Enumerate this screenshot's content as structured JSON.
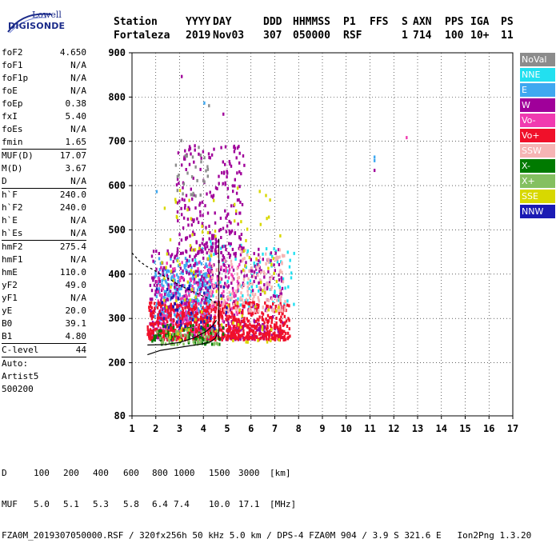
{
  "logo": {
    "line1": "Lowell",
    "line2": "DIGISONDE"
  },
  "header": {
    "row1": [
      "Station",
      "YYYY",
      "DAY",
      "DDD",
      "HHMMSS",
      "P1",
      "FFS",
      "S",
      "AXN",
      "PPS",
      "IGA",
      "PS"
    ],
    "row2": [
      "Fortaleza",
      "2019",
      "Nov03",
      "307",
      "050000",
      "RSF",
      "",
      "1",
      "714",
      "100",
      "10+",
      "11"
    ]
  },
  "params": {
    "group1": [
      [
        "foF2",
        "4.650"
      ],
      [
        "foF1",
        "N/A"
      ],
      [
        "foF1p",
        "N/A"
      ],
      [
        "foE",
        "N/A"
      ],
      [
        "foEp",
        "0.38"
      ],
      [
        "fxI",
        "5.40"
      ],
      [
        "foEs",
        "N/A"
      ],
      [
        "fmin",
        "1.65"
      ]
    ],
    "group2": [
      [
        "MUF(D)",
        "17.07"
      ],
      [
        "M(D)",
        "3.67"
      ],
      [
        "D",
        "N/A"
      ]
    ],
    "group3": [
      [
        "h`F",
        "240.0"
      ],
      [
        "h`F2",
        "240.0"
      ],
      [
        "h`E",
        "N/A"
      ],
      [
        "h`Es",
        "N/A"
      ]
    ],
    "group4": [
      [
        "hmF2",
        "275.4"
      ],
      [
        "hmF1",
        "N/A"
      ],
      [
        "hmE",
        "110.0"
      ],
      [
        "yF2",
        "49.0"
      ],
      [
        "yF1",
        "N/A"
      ],
      [
        "yE",
        "20.0"
      ],
      [
        "B0",
        "39.1"
      ],
      [
        "B1",
        "4.80"
      ]
    ],
    "group5": [
      [
        "C-level",
        "44"
      ]
    ],
    "group6": [
      "Auto:",
      "Artist5",
      "500200"
    ]
  },
  "legend": [
    {
      "label": "NoVal",
      "color": "#8c8c8c"
    },
    {
      "label": "NNE",
      "color": "#22e0f0"
    },
    {
      "label": "E",
      "color": "#3fa8f0"
    },
    {
      "label": "W",
      "color": "#a0009a"
    },
    {
      "label": "Vo-",
      "color": "#f03ab0"
    },
    {
      "label": "Vo+",
      "color": "#f0102a"
    },
    {
      "label": "SSW",
      "color": "#f6b4b4"
    },
    {
      "label": "X-",
      "color": "#007a00"
    },
    {
      "label": "X+",
      "color": "#84c060"
    },
    {
      "label": "SSE",
      "color": "#d8d800"
    },
    {
      "label": "NNW",
      "color": "#1a1ab4"
    }
  ],
  "footer": {
    "row1": [
      "D",
      "100",
      "200",
      "400",
      "600",
      "800",
      "1000",
      "1500",
      "3000",
      "[km]"
    ],
    "row2": [
      "MUF",
      "5.0",
      "5.1",
      "5.3",
      "5.8",
      "6.4",
      "7.4",
      "10.0",
      "17.1",
      "[MHz]"
    ],
    "row3": "FZA0M_2019307050000.RSF / 320fx256h 50 kHz 5.0 km / DPS-4 FZA0M 904 / 3.9 S 321.6 E   Ion2Png 1.3.20"
  },
  "chart_data": {
    "type": "scatter",
    "xlim": [
      1,
      17
    ],
    "ylim": [
      80,
      900
    ],
    "x_ticks": [
      1,
      2,
      3,
      4,
      5,
      6,
      7,
      8,
      9,
      10,
      11,
      12,
      13,
      14,
      15,
      16,
      17
    ],
    "y_ticks": [
      80,
      200,
      300,
      400,
      500,
      600,
      700,
      800,
      900
    ],
    "grid": true,
    "point_clusters": [
      {
        "label": "E",
        "x": [
          1.9,
          4.3
        ],
        "y": [
          300,
          440
        ],
        "count": 340
      },
      {
        "label": "NNE",
        "x": [
          3.6,
          7.8
        ],
        "y": [
          330,
          480
        ],
        "count": 90
      },
      {
        "label": "W",
        "x": [
          1.7,
          7.3
        ],
        "y": [
          255,
          460
        ],
        "count": 520
      },
      {
        "label": "W",
        "x": [
          2.8,
          5.7
        ],
        "y": [
          450,
          700
        ],
        "count": 230
      },
      {
        "label": "Vo-",
        "x": [
          2.0,
          5.5
        ],
        "y": [
          270,
          430
        ],
        "count": 230
      },
      {
        "label": "Vo+",
        "x": [
          1.6,
          7.6
        ],
        "y": [
          255,
          340
        ],
        "count": 700
      },
      {
        "label": "SSW",
        "x": [
          4.2,
          7.4
        ],
        "y": [
          320,
          460
        ],
        "count": 170
      },
      {
        "label": "X-",
        "x": [
          1.8,
          4.8
        ],
        "y": [
          245,
          290
        ],
        "count": 70
      },
      {
        "label": "X+",
        "x": [
          2.0,
          4.6
        ],
        "y": [
          245,
          280
        ],
        "count": 60
      },
      {
        "label": "SSE",
        "x": [
          2.2,
          7.2
        ],
        "y": [
          250,
          600
        ],
        "count": 110
      },
      {
        "label": "NNW",
        "x": [
          2.0,
          5.0
        ],
        "y": [
          280,
          380
        ],
        "count": 40
      },
      {
        "label": "NoVal",
        "x": [
          2.8,
          4.2
        ],
        "y": [
          580,
          790
        ],
        "count": 30
      }
    ],
    "isolated_points": [
      {
        "label": "W",
        "x": 3.05,
        "y": 850
      },
      {
        "label": "E",
        "x": 4.0,
        "y": 790
      },
      {
        "label": "W",
        "x": 4.8,
        "y": 765
      },
      {
        "label": "E",
        "x": 11.15,
        "y": 668
      },
      {
        "label": "E",
        "x": 11.15,
        "y": 660
      },
      {
        "label": "W",
        "x": 11.15,
        "y": 638
      },
      {
        "label": "Vo-",
        "x": 12.5,
        "y": 712
      },
      {
        "label": "E",
        "x": 2.0,
        "y": 590
      }
    ],
    "trace_lines": [
      {
        "name": "profile",
        "points": [
          [
            1.65,
            240
          ],
          [
            2.4,
            241
          ],
          [
            3.0,
            246
          ],
          [
            3.6,
            256
          ],
          [
            4.1,
            270
          ],
          [
            4.4,
            284
          ],
          [
            4.55,
            296
          ]
        ]
      },
      {
        "name": "profile_lower",
        "points": [
          [
            1.65,
            218
          ],
          [
            2.2,
            228
          ],
          [
            2.8,
            233
          ],
          [
            3.4,
            238
          ],
          [
            3.9,
            242
          ],
          [
            4.3,
            247
          ],
          [
            4.5,
            255
          ],
          [
            4.6,
            268
          ]
        ]
      },
      {
        "name": "profile_dashed",
        "points": [
          [
            1.0,
            448
          ],
          [
            1.3,
            430
          ],
          [
            1.6,
            418
          ],
          [
            1.9,
            410
          ],
          [
            2.2,
            400
          ],
          [
            2.6,
            388
          ],
          [
            3.0,
            375
          ],
          [
            3.5,
            362
          ],
          [
            4.0,
            350
          ],
          [
            4.4,
            340
          ],
          [
            4.6,
            330
          ]
        ]
      }
    ],
    "vertical_line_x": 4.65
  }
}
